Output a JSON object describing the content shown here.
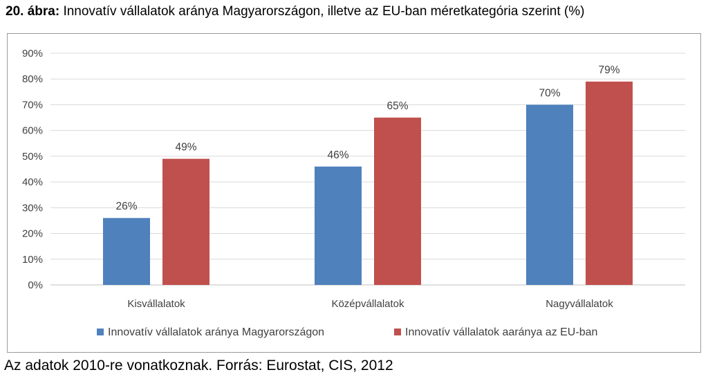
{
  "figure": {
    "number": "20. ábra:",
    "title": "Innovatív vállalatok aránya Magyarországon, illetve az EU-ban méretkategória szerint (%)"
  },
  "note": "Az adatok 2010-re vonatkoznak. Forrás: Eurostat, CIS, 2012",
  "colors": {
    "series1": "#4f81bd",
    "series2": "#c0504d",
    "grid": "#d9d9d9",
    "text": "#404040"
  },
  "chart_data": {
    "type": "bar",
    "title": "Innovatív vállalatok aránya Magyarországon, illetve az EU-ban méretkategória szerint (%)",
    "categories": [
      "Kisvállalatok",
      "Középvállalatok",
      "Nagyvállalatok"
    ],
    "series": [
      {
        "name": "Innovatív vállalatok aránya Magyarországon",
        "values": [
          26,
          46,
          70
        ],
        "labels": [
          "26%",
          "46%",
          "70%"
        ]
      },
      {
        "name": "Innovatív vállalatok aaránya az EU-ban",
        "values": [
          49,
          65,
          79
        ],
        "labels": [
          "49%",
          "65%",
          "79%"
        ]
      }
    ],
    "ylim": [
      0,
      90
    ],
    "yticks": [
      "0%",
      "10%",
      "20%",
      "30%",
      "40%",
      "50%",
      "60%",
      "70%",
      "80%",
      "90%"
    ],
    "grid": true,
    "legend": "bottom"
  }
}
